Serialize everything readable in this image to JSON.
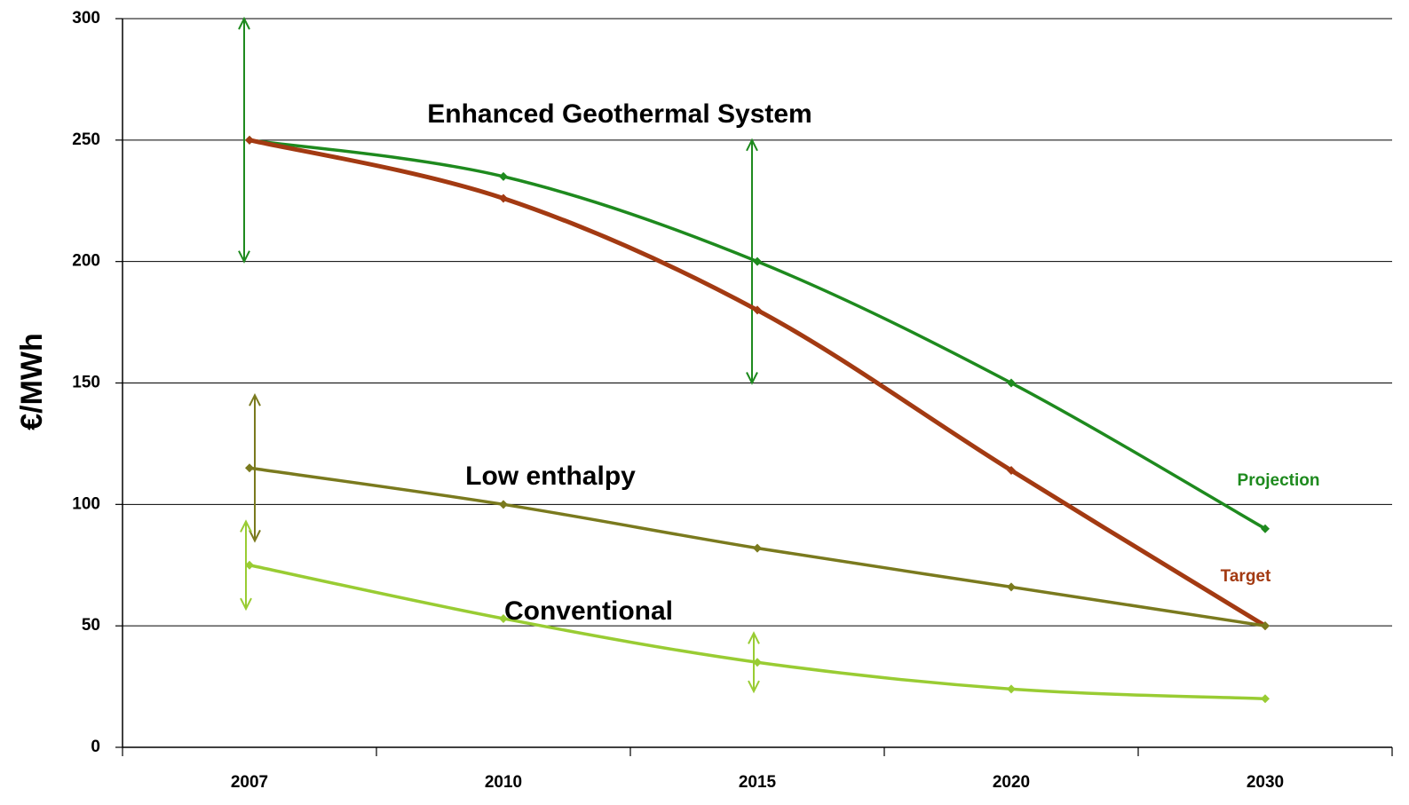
{
  "chart_data": {
    "type": "line",
    "ylabel": "€/MWh",
    "annotations": [
      "Enhanced Geothermal System"
    ],
    "categories": [
      "2007",
      "2010",
      "2015",
      "2020",
      "2030"
    ],
    "ylim": [
      0,
      300
    ],
    "yticks": [
      0,
      50,
      100,
      150,
      200,
      250,
      300
    ],
    "grid": true,
    "series": [
      {
        "name": "Projection",
        "color": "#1e8a1e",
        "values": [
          250,
          235,
          200,
          150,
          90
        ],
        "errors": [
          50,
          null,
          50,
          null,
          null
        ]
      },
      {
        "name": "Target",
        "color": "#a33a12",
        "values": [
          250,
          226,
          180,
          114,
          50
        ],
        "errors": [
          null,
          null,
          null,
          null,
          null
        ]
      },
      {
        "name": "Low enthalpy",
        "color": "#7a7a1e",
        "values": [
          115,
          100,
          82,
          66,
          50
        ],
        "errors": [
          30,
          null,
          null,
          null,
          null
        ]
      },
      {
        "name": "Conventional",
        "color": "#99cc33",
        "values": [
          75,
          53,
          35,
          24,
          20
        ],
        "errors": [
          18,
          null,
          12,
          null,
          null
        ]
      }
    ]
  }
}
